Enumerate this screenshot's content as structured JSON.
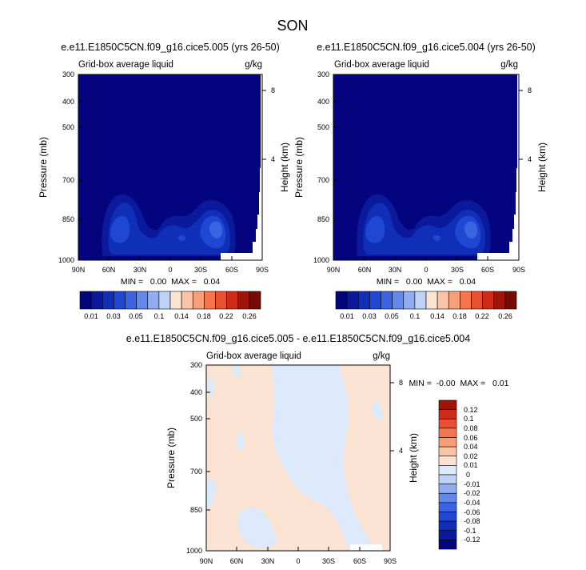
{
  "figure": {
    "title": "SON"
  },
  "colors": {
    "frame": "#000000",
    "nodata": "#ffffff",
    "mean_palette": [
      "#04047f",
      "#0b199c",
      "#0f2fb9",
      "#1f47d1",
      "#3a64e2",
      "#6288ee",
      "#90adf3",
      "#c0d2f6",
      "#fbe3d3",
      "#f9c3a6",
      "#f89e78",
      "#f3764f",
      "#e9502f",
      "#cd2c18",
      "#a11408",
      "#760a04"
    ],
    "diff_palette": [
      "#04047f",
      "#0b199c",
      "#0f2fb9",
      "#1f47d1",
      "#3a64e2",
      "#6288ee",
      "#90adf3",
      "#c0d2f6",
      "#dceafb",
      "#fbe3d3",
      "#f9c3a6",
      "#f89e78",
      "#f3764f",
      "#e9502f",
      "#cd2c18",
      "#a11408"
    ]
  },
  "chart_data": [
    {
      "type": "heatmap",
      "title": "e.e11.E1850C5CN.f09_g16.cice5.005 (yrs 26-50)",
      "left_label": "Grid-box average liquid",
      "right_label": "g/kg",
      "ylabel": "Pressure (mb)",
      "y2label": "Height (km)",
      "x_ticks": [
        "90N",
        "60N",
        "30N",
        "0",
        "30S",
        "60S",
        "90S"
      ],
      "y_ticks": [
        300,
        400,
        500,
        700,
        850,
        1000
      ],
      "y2_ticks": [
        8,
        4
      ],
      "ylim": [
        1000,
        300
      ],
      "stats": "MIN =   0.00  MAX =   0.04",
      "colorbar_labels": [
        "0.01",
        "0.03",
        "0.05",
        "0.1",
        "0.14",
        "0.18",
        "0.22",
        "0.26"
      ],
      "field": "mean"
    },
    {
      "type": "heatmap",
      "title": "e.e11.E1850C5CN.f09_g16.cice5.004 (yrs 26-50)",
      "left_label": "Grid-box average liquid",
      "right_label": "g/kg",
      "ylabel": "Pressure (mb)",
      "y2label": "Height (km)",
      "x_ticks": [
        "90N",
        "60N",
        "30N",
        "0",
        "30S",
        "60S",
        "90S"
      ],
      "y_ticks": [
        300,
        400,
        500,
        700,
        850,
        1000
      ],
      "y2_ticks": [
        8,
        4
      ],
      "ylim": [
        1000,
        300
      ],
      "stats": "MIN =   0.00  MAX =   0.04",
      "colorbar_labels": [
        "0.01",
        "0.03",
        "0.05",
        "0.1",
        "0.14",
        "0.18",
        "0.22",
        "0.26"
      ],
      "field": "mean"
    },
    {
      "type": "heatmap",
      "title": "e.e11.E1850C5CN.f09_g16.cice5.005 - e.e11.E1850C5CN.f09_g16.cice5.004",
      "left_label": "Grid-box average liquid",
      "right_label": "g/kg",
      "ylabel": "Pressure (mb)",
      "y2label": "Height (km)",
      "x_ticks": [
        "90N",
        "60N",
        "30N",
        "0",
        "30S",
        "60S",
        "90S"
      ],
      "y_ticks": [
        300,
        400,
        500,
        700,
        850,
        1000
      ],
      "y2_ticks": [
        8,
        4
      ],
      "ylim": [
        1000,
        300
      ],
      "stats": "MIN =  -0.00  MAX =   0.01",
      "colorbar_labels": [
        "0.12",
        "0.1",
        "0.08",
        "0.06",
        "0.04",
        "0.02",
        "0.01",
        "0",
        "-0.01",
        "-0.02",
        "-0.04",
        "-0.06",
        "-0.08",
        "-0.1",
        "-0.12"
      ],
      "field": "diff"
    }
  ]
}
